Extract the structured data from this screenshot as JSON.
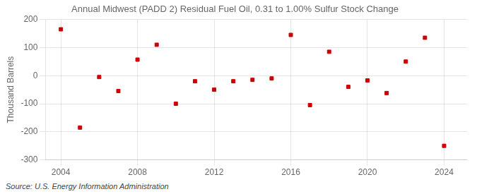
{
  "chart_data": {
    "type": "scatter",
    "title": "Annual Midwest (PADD 2) Residual Fuel Oil, 0.31 to 1.00% Sulfur Stock Change",
    "y_label": "Thousand Barrels",
    "annotations": [
      "Source: U.S. Energy Information Administration"
    ],
    "x": [
      2004,
      2005,
      2006,
      2007,
      2008,
      2009,
      2010,
      2011,
      2012,
      2013,
      2014,
      2015,
      2016,
      2017,
      2018,
      2019,
      2020,
      2021,
      2022,
      2023,
      2024
    ],
    "values": [
      165,
      -185,
      -5,
      -55,
      57,
      110,
      -100,
      -20,
      -50,
      -20,
      -15,
      -10,
      145,
      -105,
      85,
      -40,
      -17,
      -62,
      50,
      135,
      -250
    ],
    "color": "#cc0000",
    "marker": "square",
    "xlim": [
      2003.2,
      2025.2
    ],
    "ylim": [
      -300,
      200
    ],
    "xticks": [
      2004,
      2008,
      2012,
      2016,
      2020,
      2024
    ],
    "yticks": [
      -300,
      -200,
      -100,
      0,
      100,
      200
    ],
    "grid": true
  }
}
